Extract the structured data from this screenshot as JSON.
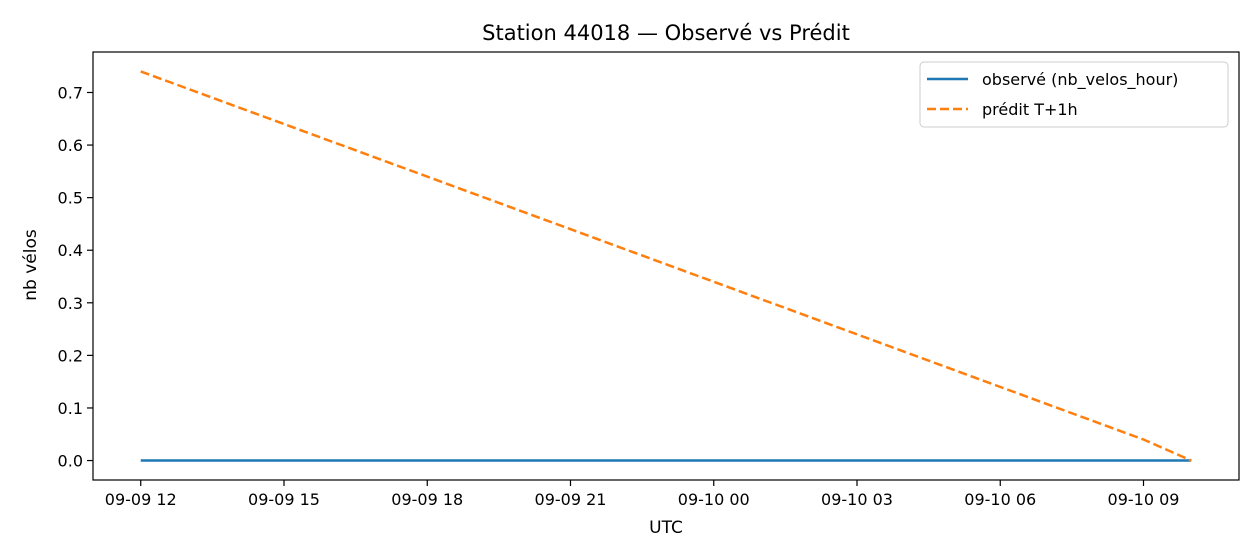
{
  "chart_data": {
    "type": "line",
    "title": "Station 44018 — Observé vs Prédit",
    "xlabel": "UTC",
    "ylabel": "nb vélos",
    "x_ticks": [
      "09-09 12",
      "09-09 15",
      "09-09 18",
      "09-09 21",
      "09-10 00",
      "09-10 03",
      "09-10 06",
      "09-10 09"
    ],
    "y_ticks": [
      "0.0",
      "0.1",
      "0.2",
      "0.3",
      "0.4",
      "0.5",
      "0.6",
      "0.7"
    ],
    "xlim": [
      "2024-09-09T11:00",
      "2024-09-10T11:00"
    ],
    "ylim": [
      -0.037,
      0.777
    ],
    "grid": false,
    "legend_position": "top-right",
    "series": [
      {
        "name": "observé (nb_velos_hour)",
        "color": "#1f77b4",
        "style": "solid",
        "points": [
          {
            "x": "2024-09-09T12:00",
            "y": 0.0
          },
          {
            "x": "2024-09-10T10:00",
            "y": 0.0
          }
        ]
      },
      {
        "name": "prédit T+1h",
        "color": "#ff7f0e",
        "style": "dashed",
        "points": [
          {
            "x": "2024-09-09T12:00",
            "y": 0.74
          },
          {
            "x": "2024-09-10T09:00",
            "y": 0.04
          },
          {
            "x": "2024-09-10T10:00",
            "y": 0.0
          }
        ]
      }
    ]
  }
}
